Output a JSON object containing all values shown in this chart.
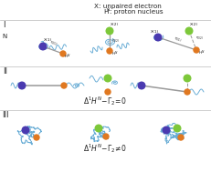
{
  "bg_color": "#ffffff",
  "chain_color": "#6baed6",
  "purple_color": "#4a3ab0",
  "orange_color": "#e07820",
  "green_color": "#7dc83a",
  "gray_color": "#999999",
  "text_color": "#222222",
  "title1": "X: unpaired electron",
  "title2_h": "H",
  "title2_super": "N",
  "title2_rest": ": proton nucleus",
  "label_I": "I",
  "label_N": "N",
  "label_II": "II",
  "label_III": "III",
  "eq2": "$\\Delta^1H^N\\!-\\!\\Gamma_2\\!=\\!0$",
  "eq3": "$\\Delta^1H^N\\!-\\!\\Gamma_2\\!\\neq\\!0$"
}
